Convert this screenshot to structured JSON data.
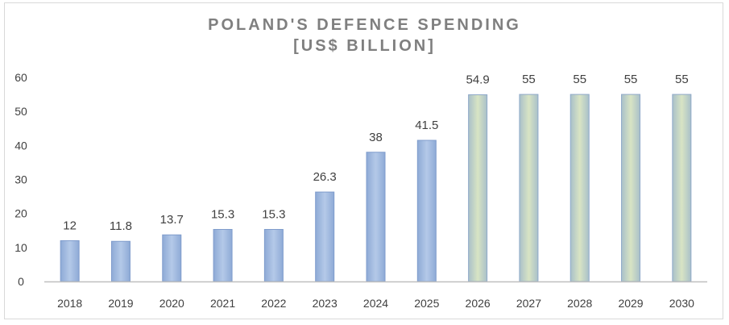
{
  "chart_data": {
    "type": "bar",
    "title_line1": "POLAND'S DEFENCE SPENDING",
    "title_line2": "[US$ BILLION]",
    "categories": [
      "2018",
      "2019",
      "2020",
      "2021",
      "2022",
      "2023",
      "2024",
      "2025",
      "2026",
      "2027",
      "2028",
      "2029",
      "2030"
    ],
    "values": [
      12,
      11.8,
      13.7,
      15.3,
      15.3,
      26.3,
      38,
      41.5,
      54.9,
      55,
      55,
      55,
      55
    ],
    "data_labels": [
      "12",
      "11.8",
      "13.7",
      "15.3",
      "15.3",
      "26.3",
      "38",
      "41.5",
      "54.9",
      "55",
      "55",
      "55",
      "55"
    ],
    "ylim": [
      0,
      60
    ],
    "yticks": [
      0,
      10,
      20,
      30,
      40,
      50,
      60
    ],
    "grid": false,
    "legend": "none",
    "colors": {
      "actual_fill": "#a7bfe0",
      "actual_edge": "#7f9ccc",
      "forecast_fill": "#cfdcc0",
      "forecast_edge": "#8fa9c9",
      "axis": "#bfbfbf",
      "text": "#404040",
      "title": "#7f7f7f"
    },
    "forecast_start_index": 8
  }
}
